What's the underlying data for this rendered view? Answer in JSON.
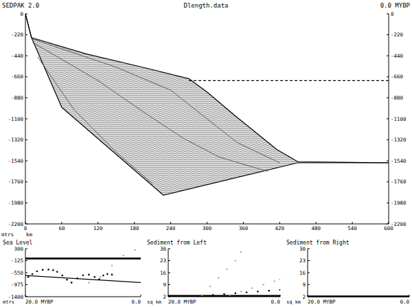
{
  "header": {
    "left": "SEDPAK 2.0",
    "right": "0.0 MYBP"
  },
  "chart_data": [
    {
      "type": "cross-section",
      "title": "Dlength.data",
      "x_label": "km",
      "y_label": "mtrs",
      "xlim": [
        0,
        600
      ],
      "ylim": [
        -2200,
        0
      ],
      "xticks": [
        0,
        60,
        120,
        180,
        240,
        300,
        360,
        420,
        480,
        540,
        600
      ],
      "yticks": [
        0,
        -220,
        -440,
        -660,
        -880,
        -1100,
        -1320,
        -1540,
        -1760,
        -1980,
        -2200
      ],
      "series": [
        {
          "type": "line",
          "color": "#000000",
          "line_style": "solid",
          "x": [
            0,
            10,
            60,
            228,
            450,
            600
          ],
          "values": [
            0,
            -250,
            -980,
            -1900,
            -1560,
            -1560
          ]
        },
        {
          "type": "line",
          "color": "#000000",
          "line_style": "solid",
          "x": [
            0,
            10,
            100,
            200,
            270,
            300,
            345,
            380,
            415,
            450,
            600
          ],
          "values": [
            0,
            -250,
            -420,
            -570,
            -680,
            -820,
            -1060,
            -1240,
            -1420,
            -1550,
            -1560
          ]
        },
        {
          "type": "line",
          "color": "#000000",
          "line_style": "dashed",
          "x": [
            270,
            600
          ],
          "values": [
            -700,
            -700
          ]
        },
        {
          "type": "line",
          "color": "#444444",
          "line_style": "solid",
          "x": [
            10,
            150,
            240,
            300,
            350,
            420
          ],
          "values": [
            -260,
            -560,
            -800,
            -1100,
            -1350,
            -1560
          ]
        },
        {
          "type": "line",
          "color": "#444444",
          "line_style": "solid",
          "x": [
            12,
            120,
            200,
            260,
            320,
            400
          ],
          "values": [
            -300,
            -700,
            -1050,
            -1300,
            -1500,
            -1650
          ]
        },
        {
          "type": "line",
          "color": "#444444",
          "line_style": "solid",
          "x": [
            20,
            80,
            150,
            210
          ],
          "values": [
            -450,
            -1000,
            -1450,
            -1780
          ]
        }
      ]
    },
    {
      "type": "line",
      "title": "Sea Level",
      "y_label": "mtrs",
      "xlim": [
        20,
        0
      ],
      "ylim": [
        -1400,
        300
      ],
      "xticks": [
        {
          "value": 20,
          "label": "20.0 MYBP"
        },
        {
          "value": 0,
          "label": "0.0"
        }
      ],
      "yticks": [
        300,
        -125,
        -550,
        -975,
        -1400
      ],
      "series": [
        {
          "type": "line",
          "color": "#000000",
          "line_style": "thick",
          "x": [
            20,
            0
          ],
          "values": [
            -50,
            -50
          ]
        },
        {
          "type": "scatter",
          "marker": "dot",
          "color": "#000000",
          "x": [
            19.5,
            18.8,
            18,
            17,
            16,
            15.2,
            14.5,
            13.6,
            12.8,
            12,
            11,
            10,
            9,
            8,
            7.2,
            6.5,
            5.8,
            5
          ],
          "values": [
            -700,
            -600,
            -500,
            -450,
            -440,
            -460,
            -520,
            -650,
            -800,
            -900,
            -750,
            -640,
            -620,
            -700,
            -780,
            -650,
            -600,
            -620
          ]
        },
        {
          "type": "line",
          "color": "#000000",
          "line_style": "solid",
          "x": [
            20,
            0
          ],
          "values": [
            -650,
            -900
          ]
        },
        {
          "type": "scatter",
          "marker": "dot",
          "color": "#b0b0b0",
          "x": [
            9,
            7,
            5,
            3,
            1
          ],
          "values": [
            -900,
            -700,
            -300,
            50,
            250
          ]
        }
      ]
    },
    {
      "type": "line",
      "title": "Sediment from Left",
      "y_label": "sq km",
      "xlim": [
        20,
        0
      ],
      "ylim": [
        2,
        30
      ],
      "xticks": [
        {
          "value": 20,
          "label": "20.0 MYBP"
        },
        {
          "value": 0,
          "label": "0.0"
        }
      ],
      "yticks": [
        30,
        23,
        16,
        9,
        2
      ],
      "series": [
        {
          "type": "line",
          "color": "#000000",
          "line_style": "thick",
          "x": [
            20,
            0
          ],
          "values": [
            2.5,
            2.5
          ]
        },
        {
          "type": "scatter",
          "marker": "dot",
          "color": "#000000",
          "x": [
            12,
            10,
            8,
            6,
            4,
            2,
            0
          ],
          "values": [
            3,
            3.5,
            4,
            4.5,
            5,
            5.5,
            6
          ]
        },
        {
          "type": "scatter",
          "marker": "dot",
          "color": "#b0b0b0",
          "x": [
            14,
            12.5,
            11,
            9.5,
            8,
            7
          ],
          "values": [
            3,
            8,
            13,
            18,
            23,
            28
          ]
        },
        {
          "type": "scatter",
          "marker": "dot",
          "color": "#b0b0b0",
          "x": [
            9,
            7,
            5,
            3,
            1,
            0
          ],
          "values": [
            3,
            5,
            7,
            9,
            11,
            12
          ]
        }
      ]
    },
    {
      "type": "line",
      "title": "Sediment from Right",
      "y_label": "sq km",
      "xlim": [
        20,
        0
      ],
      "ylim": [
        2,
        30
      ],
      "xticks": [
        {
          "value": 20,
          "label": "20.0 MYBP"
        },
        {
          "value": 0,
          "label": "0.0"
        }
      ],
      "yticks": [
        30,
        23,
        16,
        9,
        2
      ],
      "series": [
        {
          "type": "line",
          "color": "#000000",
          "line_style": "thick",
          "x": [
            20,
            0
          ],
          "values": [
            2.2,
            2.2
          ]
        }
      ]
    }
  ]
}
